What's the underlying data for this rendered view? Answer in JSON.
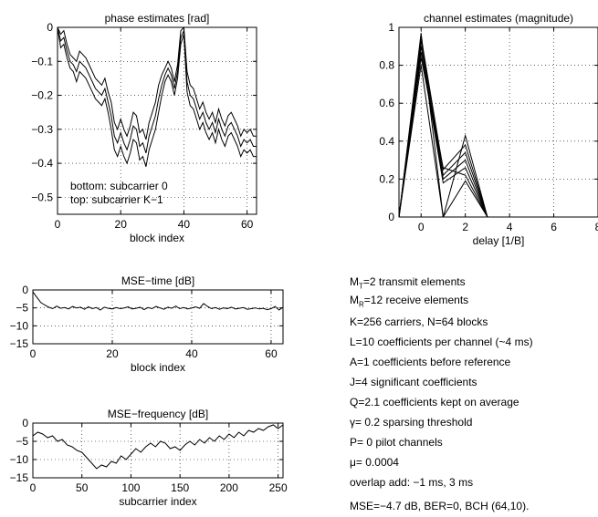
{
  "chart_data": [
    {
      "type": "line",
      "title": "phase estimates [rad]",
      "xlabel": "block index",
      "ylabel": "",
      "xlim": [
        0,
        63
      ],
      "ylim": [
        -0.55,
        0
      ],
      "xticks": [
        0,
        20,
        40,
        60
      ],
      "yticks": [
        0,
        -0.1,
        -0.2,
        -0.3,
        -0.4,
        -0.5
      ],
      "xtick_labels": [
        "0",
        "20",
        "40",
        "60"
      ],
      "ytick_labels": [
        "0",
        "−0.1",
        "−0.2",
        "−0.3",
        "−0.4",
        "−0.5"
      ],
      "grid": true,
      "annotations": [
        "bottom: subcarrier 0",
        "top: subcarrier K−1"
      ],
      "x": [
        0,
        1,
        2,
        3,
        4,
        5,
        6,
        7,
        8,
        9,
        10,
        11,
        12,
        13,
        14,
        15,
        16,
        17,
        18,
        19,
        20,
        21,
        22,
        23,
        24,
        25,
        26,
        27,
        28,
        29,
        30,
        31,
        32,
        33,
        34,
        35,
        36,
        37,
        38,
        39,
        40,
        41,
        42,
        43,
        44,
        45,
        46,
        47,
        48,
        49,
        50,
        51,
        52,
        53,
        54,
        55,
        56,
        57,
        58,
        59,
        60,
        61,
        62,
        63
      ],
      "series": [
        {
          "values": [
            0,
            -0.06,
            -0.05,
            -0.09,
            -0.12,
            -0.13,
            -0.16,
            -0.13,
            -0.14,
            -0.15,
            -0.17,
            -0.19,
            -0.21,
            -0.22,
            -0.23,
            -0.21,
            -0.25,
            -0.3,
            -0.36,
            -0.38,
            -0.35,
            -0.38,
            -0.4,
            -0.37,
            -0.33,
            -0.34,
            -0.39,
            -0.38,
            -0.41,
            -0.36,
            -0.33,
            -0.3,
            -0.25,
            -0.2,
            -0.16,
            -0.14,
            -0.16,
            -0.2,
            -0.15,
            -0.05,
            -0.02,
            -0.19,
            -0.23,
            -0.24,
            -0.27,
            -0.3,
            -0.28,
            -0.31,
            -0.33,
            -0.31,
            -0.34,
            -0.3,
            -0.33,
            -0.35,
            -0.32,
            -0.31,
            -0.33,
            -0.35,
            -0.38,
            -0.36,
            -0.37,
            -0.36,
            -0.38,
            -0.38
          ]
        },
        {
          "values": [
            0,
            -0.04,
            -0.03,
            -0.07,
            -0.1,
            -0.11,
            -0.13,
            -0.1,
            -0.11,
            -0.12,
            -0.14,
            -0.16,
            -0.18,
            -0.19,
            -0.2,
            -0.18,
            -0.22,
            -0.26,
            -0.32,
            -0.34,
            -0.31,
            -0.34,
            -0.36,
            -0.33,
            -0.29,
            -0.3,
            -0.35,
            -0.34,
            -0.37,
            -0.32,
            -0.29,
            -0.26,
            -0.21,
            -0.17,
            -0.14,
            -0.12,
            -0.14,
            -0.18,
            -0.13,
            -0.03,
            -0.01,
            -0.16,
            -0.2,
            -0.21,
            -0.24,
            -0.27,
            -0.25,
            -0.28,
            -0.3,
            -0.28,
            -0.31,
            -0.27,
            -0.3,
            -0.32,
            -0.29,
            -0.28,
            -0.3,
            -0.32,
            -0.35,
            -0.33,
            -0.34,
            -0.33,
            -0.35,
            -0.35
          ]
        },
        {
          "values": [
            0,
            -0.02,
            -0.01,
            -0.05,
            -0.08,
            -0.09,
            -0.1,
            -0.07,
            -0.08,
            -0.09,
            -0.11,
            -0.13,
            -0.15,
            -0.16,
            -0.17,
            -0.15,
            -0.19,
            -0.22,
            -0.28,
            -0.3,
            -0.27,
            -0.3,
            -0.32,
            -0.29,
            -0.25,
            -0.26,
            -0.31,
            -0.3,
            -0.33,
            -0.28,
            -0.25,
            -0.22,
            -0.17,
            -0.14,
            -0.12,
            -0.1,
            -0.12,
            -0.16,
            -0.11,
            -0.01,
            0,
            -0.13,
            -0.17,
            -0.18,
            -0.21,
            -0.24,
            -0.22,
            -0.25,
            -0.27,
            -0.25,
            -0.28,
            -0.24,
            -0.27,
            -0.29,
            -0.26,
            -0.25,
            -0.27,
            -0.29,
            -0.32,
            -0.3,
            -0.31,
            -0.3,
            -0.32,
            -0.32
          ]
        }
      ]
    },
    {
      "type": "line",
      "title": "channel estimates (magnitude)",
      "xlabel": "delay [1/B]",
      "ylabel": "",
      "xlim": [
        -1,
        8
      ],
      "ylim": [
        0,
        1
      ],
      "xticks": [
        0,
        2,
        4,
        6,
        8
      ],
      "yticks": [
        0,
        0.2,
        0.4,
        0.6,
        0.8,
        1
      ],
      "xtick_labels": [
        "0",
        "2",
        "4",
        "6",
        "8"
      ],
      "ytick_labels": [
        "0",
        "0.2",
        "0.4",
        "0.6",
        "0.8",
        "1"
      ],
      "grid": true,
      "x": [
        -1,
        0,
        1,
        2,
        3
      ],
      "series": [
        {
          "values": [
            0,
            0.97,
            0,
            0.43,
            0
          ]
        },
        {
          "values": [
            0,
            0.95,
            0.25,
            0.38,
            0
          ]
        },
        {
          "values": [
            0,
            0.93,
            0.22,
            0.34,
            0
          ]
        },
        {
          "values": [
            0,
            0.9,
            0.2,
            0.3,
            0
          ]
        },
        {
          "values": [
            0,
            0.87,
            0.18,
            0.26,
            0
          ]
        },
        {
          "values": [
            0,
            0.84,
            0.26,
            0.22,
            0
          ]
        },
        {
          "values": [
            0,
            0.8,
            0,
            0.19,
            0
          ]
        }
      ]
    },
    {
      "type": "line",
      "title": "MSE−time [dB]",
      "xlabel": "block index",
      "ylabel": "",
      "xlim": [
        0,
        63
      ],
      "ylim": [
        -15,
        0
      ],
      "xticks": [
        0,
        20,
        40,
        60
      ],
      "yticks": [
        0,
        -5,
        -10,
        -15
      ],
      "xtick_labels": [
        "0",
        "20",
        "40",
        "60"
      ],
      "ytick_labels": [
        "0",
        "−5",
        "−10",
        "−15"
      ],
      "grid": true,
      "x": [
        0,
        1,
        2,
        3,
        4,
        5,
        6,
        7,
        8,
        9,
        10,
        11,
        12,
        13,
        14,
        15,
        16,
        17,
        18,
        19,
        20,
        21,
        22,
        23,
        24,
        25,
        26,
        27,
        28,
        29,
        30,
        31,
        32,
        33,
        34,
        35,
        36,
        37,
        38,
        39,
        40,
        41,
        42,
        43,
        44,
        45,
        46,
        47,
        48,
        49,
        50,
        51,
        52,
        53,
        54,
        55,
        56,
        57,
        58,
        59,
        60,
        61,
        62,
        63
      ],
      "series": [
        {
          "values": [
            -0.5,
            -2,
            -3.5,
            -4.2,
            -4.8,
            -5.2,
            -4.5,
            -5.1,
            -4.9,
            -5.3,
            -4.6,
            -5,
            -4.8,
            -5.4,
            -4.7,
            -5.2,
            -4.9,
            -5.6,
            -4.8,
            -5.1,
            -5.3,
            -4.9,
            -5.2,
            -5,
            -4.7,
            -5.3,
            -5.1,
            -4.8,
            -5.5,
            -4.9,
            -5.2,
            -4.6,
            -5,
            -5.4,
            -4.8,
            -5.1,
            -4.5,
            -5.2,
            -4.9,
            -5.3,
            -5,
            -4.7,
            -5.1,
            -3.8,
            -4.6,
            -5.2,
            -4.9,
            -5.4,
            -5,
            -5.2,
            -4.8,
            -5.3,
            -5.1,
            -4.9,
            -5.4,
            -5.2,
            -5,
            -5.3,
            -5.1,
            -5.5,
            -5.2,
            -4.6,
            -5.6,
            -4.8
          ]
        }
      ]
    },
    {
      "type": "line",
      "title": "MSE−frequency [dB]",
      "xlabel": "subcarrier index",
      "ylabel": "",
      "xlim": [
        0,
        255
      ],
      "ylim": [
        -15,
        0
      ],
      "xticks": [
        0,
        50,
        100,
        150,
        200,
        250
      ],
      "yticks": [
        0,
        -5,
        -10,
        -15
      ],
      "xtick_labels": [
        "0",
        "50",
        "100",
        "150",
        "200",
        "250"
      ],
      "ytick_labels": [
        "0",
        "−5",
        "−10",
        "−15"
      ],
      "grid": true,
      "x": [
        0,
        5,
        10,
        15,
        20,
        25,
        30,
        35,
        40,
        45,
        50,
        55,
        60,
        65,
        70,
        75,
        80,
        85,
        90,
        95,
        100,
        105,
        110,
        115,
        120,
        125,
        130,
        135,
        140,
        145,
        150,
        155,
        160,
        165,
        170,
        175,
        180,
        185,
        190,
        195,
        200,
        205,
        210,
        215,
        220,
        225,
        230,
        235,
        240,
        245,
        250,
        255
      ],
      "series": [
        {
          "values": [
            -3.5,
            -2.5,
            -3,
            -4,
            -3.5,
            -5,
            -4.5,
            -6,
            -6.5,
            -7.5,
            -8,
            -9.5,
            -11,
            -12.5,
            -11.5,
            -12,
            -10.5,
            -11,
            -9,
            -10,
            -8.5,
            -7,
            -8,
            -6.5,
            -5.5,
            -6.5,
            -5,
            -5.5,
            -7,
            -6.5,
            -7.5,
            -6,
            -5,
            -6,
            -4.5,
            -5.5,
            -4,
            -5,
            -3.5,
            -4.5,
            -3,
            -4,
            -2.5,
            -3.5,
            -2,
            -2.5,
            -1.5,
            -2,
            -1,
            -0.5,
            -1.5,
            -0.5
          ]
        }
      ]
    }
  ],
  "info": {
    "lines": [
      "M_T=2 transmit elements",
      "M_R=12 receive elements",
      "K=256 carriers, N=64 blocks",
      "L=10 coefficients per channel  (~4 ms)",
      "A=1 coefficients before reference",
      "J=4 significant coefficients",
      "Q=2.1 coefficients kept on average",
      "γ= 0.2 sparsing threshold",
      "P= 0 pilot channels",
      "μ= 0.0004",
      "overlap add: −1 ms, 3 ms",
      "MSE=−4.7 dB, BER=0, BCH (64,10)."
    ]
  }
}
